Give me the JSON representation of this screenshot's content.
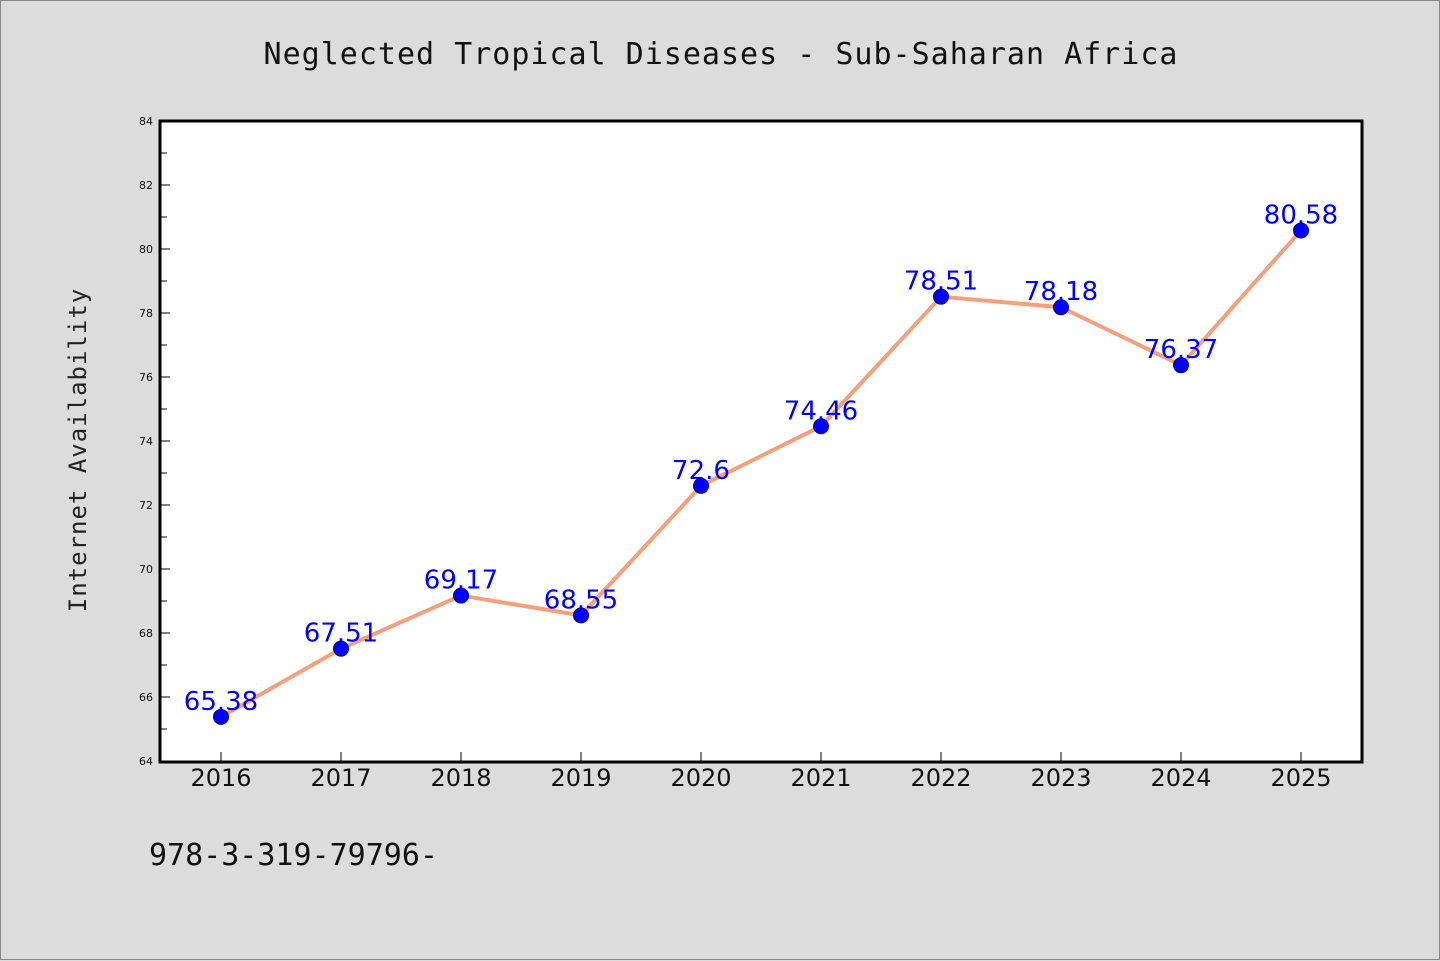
{
  "chart_data": {
    "type": "line",
    "title": "Neglected Tropical Diseases - Sub-Saharan Africa",
    "xlabel": "",
    "ylabel": "Internet Availability",
    "categories": [
      "2016",
      "2017",
      "2018",
      "2019",
      "2020",
      "2021",
      "2022",
      "2023",
      "2024",
      "2025"
    ],
    "values": [
      65.38,
      67.51,
      69.17,
      68.55,
      72.6,
      74.46,
      78.51,
      78.18,
      76.37,
      80.58
    ],
    "data_labels": [
      "65.38",
      "67.51",
      "69.17",
      "68.55",
      "72.6",
      "74.46",
      "78.51",
      "78.18",
      "76.37",
      "80.58"
    ],
    "ylim": [
      64,
      84
    ],
    "yticks": [
      64,
      66,
      68,
      70,
      72,
      74,
      76,
      78,
      80,
      82,
      84
    ],
    "grid": false,
    "legend": "none",
    "colors": {
      "line": "#f4a07c",
      "marker": "#0000ff",
      "label": "#0000ff",
      "background": "#dcdcdc",
      "plot_area": "#ffffff"
    }
  },
  "footer_text": "978-3-319-79796-"
}
